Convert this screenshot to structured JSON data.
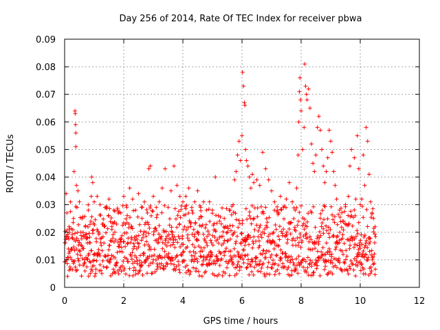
{
  "chart_data": {
    "type": "scatter",
    "title": "Day 256 of 2014, Rate Of TEC Index for receiver pbwa",
    "xlabel": "GPS time / hours",
    "ylabel": "ROTI / TECUs",
    "xlim": [
      0,
      12
    ],
    "ylim": [
      0,
      0.09
    ],
    "xticks": [
      "0",
      "2",
      "4",
      "6",
      "8",
      "10",
      "12"
    ],
    "yticks": [
      "0",
      "0.01",
      "0.02",
      "0.03",
      "0.04",
      "0.05",
      "0.06",
      "0.07",
      "0.08",
      "0.09"
    ],
    "grid": true,
    "marker": "+",
    "color": "#ff0000",
    "series": [
      {
        "name": "ROTI",
        "points": [
          [
            0.05,
            0.034
          ],
          [
            0.08,
            0.027
          ],
          [
            0.1,
            0.004
          ],
          [
            0.15,
            0.022
          ],
          [
            0.2,
            0.031
          ],
          [
            0.25,
            0.018
          ],
          [
            0.3,
            0.025
          ],
          [
            0.32,
            0.042
          ],
          [
            0.35,
            0.064
          ],
          [
            0.36,
            0.063
          ],
          [
            0.37,
            0.059
          ],
          [
            0.38,
            0.056
          ],
          [
            0.38,
            0.051
          ],
          [
            0.4,
            0.037
          ],
          [
            0.42,
            0.029
          ],
          [
            0.45,
            0.035
          ],
          [
            0.5,
            0.031
          ],
          [
            0.55,
            0.02
          ],
          [
            0.6,
            0.014
          ],
          [
            0.7,
            0.022
          ],
          [
            0.75,
            0.018
          ],
          [
            0.8,
            0.028
          ],
          [
            0.9,
            0.033
          ],
          [
            0.92,
            0.04
          ],
          [
            0.95,
            0.038
          ],
          [
            1.0,
            0.031
          ],
          [
            1.1,
            0.033
          ],
          [
            1.2,
            0.03
          ],
          [
            1.3,
            0.023
          ],
          [
            1.4,
            0.029
          ],
          [
            1.5,
            0.032
          ],
          [
            1.6,
            0.021
          ],
          [
            1.7,
            0.02
          ],
          [
            1.8,
            0.028
          ],
          [
            1.9,
            0.027
          ],
          [
            2.0,
            0.033
          ],
          [
            2.1,
            0.029
          ],
          [
            2.2,
            0.036
          ],
          [
            2.3,
            0.032
          ],
          [
            2.4,
            0.028
          ],
          [
            2.5,
            0.034
          ],
          [
            2.6,
            0.029
          ],
          [
            2.7,
            0.031
          ],
          [
            2.75,
            0.02
          ],
          [
            2.8,
            0.027
          ],
          [
            2.85,
            0.043
          ],
          [
            2.9,
            0.044
          ],
          [
            3.0,
            0.033
          ],
          [
            3.1,
            0.029
          ],
          [
            3.2,
            0.031
          ],
          [
            3.3,
            0.036
          ],
          [
            3.4,
            0.043
          ],
          [
            3.5,
            0.029
          ],
          [
            3.6,
            0.035
          ],
          [
            3.7,
            0.044
          ],
          [
            3.8,
            0.037
          ],
          [
            3.9,
            0.033
          ],
          [
            4.0,
            0.031
          ],
          [
            4.1,
            0.033
          ],
          [
            4.2,
            0.036
          ],
          [
            4.3,
            0.029
          ],
          [
            4.4,
            0.031
          ],
          [
            4.5,
            0.035
          ],
          [
            4.6,
            0.029
          ],
          [
            4.7,
            0.031
          ],
          [
            4.8,
            0.028
          ],
          [
            4.9,
            0.031
          ],
          [
            5.0,
            0.028
          ],
          [
            5.1,
            0.04
          ],
          [
            5.2,
            0.026
          ],
          [
            5.3,
            0.023
          ],
          [
            5.4,
            0.025
          ],
          [
            5.5,
            0.022
          ],
          [
            5.6,
            0.028
          ],
          [
            5.7,
            0.03
          ],
          [
            5.75,
            0.039
          ],
          [
            5.8,
            0.042
          ],
          [
            5.85,
            0.048
          ],
          [
            5.9,
            0.053
          ],
          [
            5.95,
            0.046
          ],
          [
            6.0,
            0.055
          ],
          [
            6.02,
            0.078
          ],
          [
            6.05,
            0.073
          ],
          [
            6.08,
            0.067
          ],
          [
            6.1,
            0.066
          ],
          [
            6.12,
            0.05
          ],
          [
            6.15,
            0.046
          ],
          [
            6.2,
            0.044
          ],
          [
            6.25,
            0.04
          ],
          [
            6.3,
            0.036
          ],
          [
            6.35,
            0.041
          ],
          [
            6.4,
            0.038
          ],
          [
            6.5,
            0.039
          ],
          [
            6.6,
            0.037
          ],
          [
            6.7,
            0.049
          ],
          [
            6.8,
            0.043
          ],
          [
            6.9,
            0.039
          ],
          [
            7.0,
            0.035
          ],
          [
            7.1,
            0.031
          ],
          [
            7.2,
            0.028
          ],
          [
            7.3,
            0.033
          ],
          [
            7.4,
            0.029
          ],
          [
            7.5,
            0.032
          ],
          [
            7.6,
            0.038
          ],
          [
            7.7,
            0.031
          ],
          [
            7.8,
            0.028
          ],
          [
            7.85,
            0.036
          ],
          [
            7.9,
            0.048
          ],
          [
            7.92,
            0.06
          ],
          [
            7.94,
            0.071
          ],
          [
            7.96,
            0.076
          ],
          [
            7.98,
            0.068
          ],
          [
            8.0,
            0.064
          ],
          [
            8.05,
            0.05
          ],
          [
            8.1,
            0.058
          ],
          [
            8.12,
            0.081
          ],
          [
            8.15,
            0.073
          ],
          [
            8.18,
            0.07
          ],
          [
            8.2,
            0.068
          ],
          [
            8.25,
            0.072
          ],
          [
            8.3,
            0.065
          ],
          [
            8.35,
            0.052
          ],
          [
            8.4,
            0.045
          ],
          [
            8.45,
            0.042
          ],
          [
            8.5,
            0.048
          ],
          [
            8.55,
            0.058
          ],
          [
            8.6,
            0.062
          ],
          [
            8.65,
            0.057
          ],
          [
            8.7,
            0.05
          ],
          [
            8.75,
            0.044
          ],
          [
            8.8,
            0.038
          ],
          [
            8.85,
            0.042
          ],
          [
            8.9,
            0.047
          ],
          [
            8.95,
            0.057
          ],
          [
            9.0,
            0.053
          ],
          [
            9.05,
            0.049
          ],
          [
            9.1,
            0.042
          ],
          [
            9.15,
            0.037
          ],
          [
            9.2,
            0.032
          ],
          [
            9.3,
            0.028
          ],
          [
            9.4,
            0.024
          ],
          [
            9.5,
            0.03
          ],
          [
            9.6,
            0.033
          ],
          [
            9.65,
            0.044
          ],
          [
            9.7,
            0.05
          ],
          [
            9.8,
            0.047
          ],
          [
            9.85,
            0.032
          ],
          [
            9.9,
            0.055
          ],
          [
            9.95,
            0.043
          ],
          [
            10.0,
            0.03
          ],
          [
            10.05,
            0.032
          ],
          [
            10.1,
            0.048
          ],
          [
            10.15,
            0.037
          ],
          [
            10.2,
            0.058
          ],
          [
            10.25,
            0.053
          ],
          [
            10.3,
            0.041
          ],
          [
            10.35,
            0.031
          ],
          [
            10.4,
            0.027
          ],
          [
            10.45,
            0.025
          ],
          [
            10.5,
            0.022
          ]
        ],
        "band": {
          "x_start": 0.0,
          "x_end": 10.5,
          "x_step": 0.03,
          "low_range": [
            0.004,
            0.012
          ],
          "high_range": [
            0.016,
            0.03
          ]
        }
      }
    ]
  }
}
